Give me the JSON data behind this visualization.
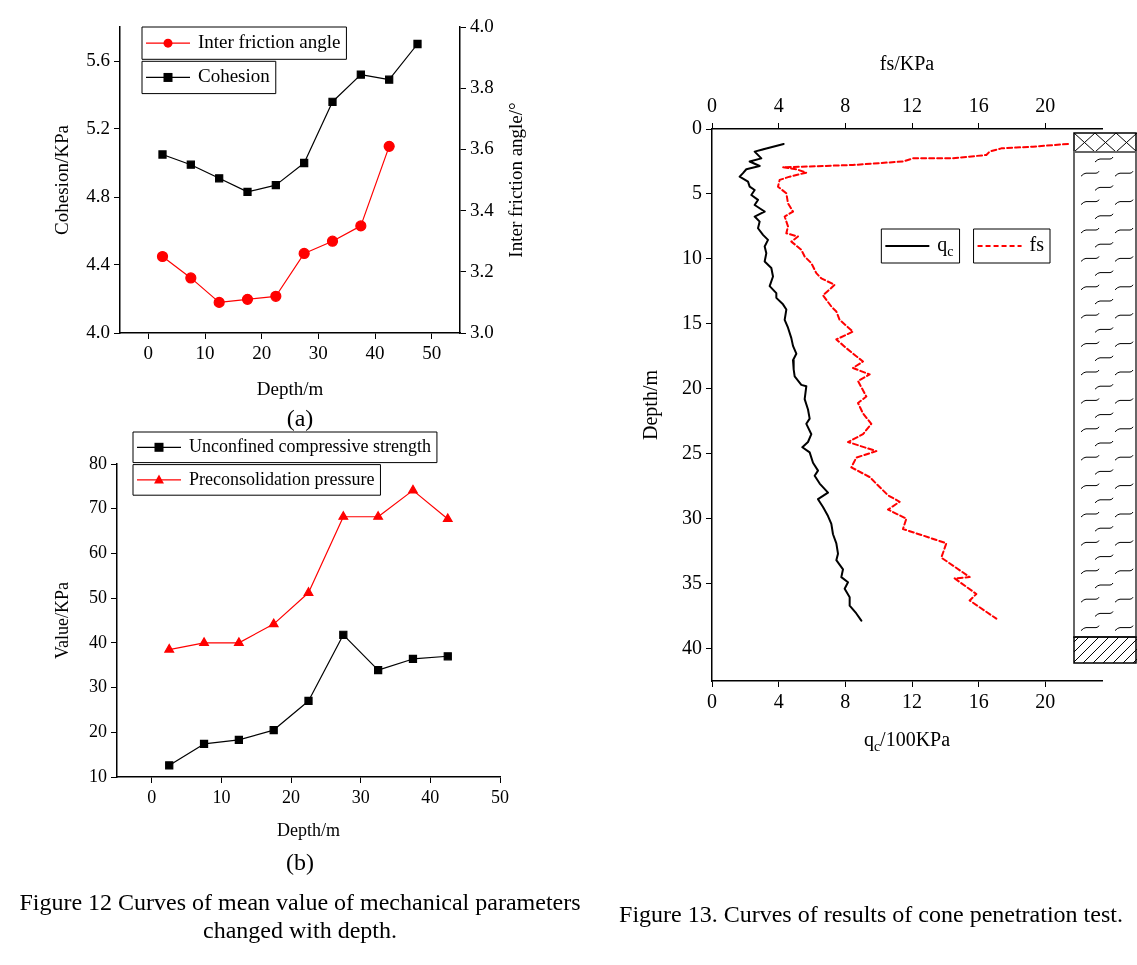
{
  "chart_data": [
    {
      "type": "line",
      "xlabel": "Depth/m",
      "ylabel": "Cohesion/KPa",
      "y2label": "Inter friction angle/°",
      "x": [
        2.5,
        7.5,
        12.5,
        17.5,
        22.5,
        27.5,
        32.5,
        37.5,
        42.5,
        47.5
      ],
      "xlim": [
        -5,
        55
      ],
      "xticks": [
        0,
        10,
        20,
        30,
        40,
        50
      ],
      "ylim": [
        4.0,
        5.8
      ],
      "yticks": [
        {
          "value": 4.0,
          "label": "4.0"
        },
        {
          "value": 4.4,
          "label": "4.4"
        },
        {
          "value": 4.8,
          "label": "4.8"
        },
        {
          "value": 5.2,
          "label": "5.2"
        },
        {
          "value": 5.6,
          "label": "5.6"
        }
      ],
      "y2lim": [
        3.0,
        4.0
      ],
      "y2ticks": [
        {
          "value": 3.0,
          "label": "3.0"
        },
        {
          "value": 3.2,
          "label": "3.2"
        },
        {
          "value": 3.4,
          "label": "3.4"
        },
        {
          "value": 3.6,
          "label": "3.6"
        },
        {
          "value": 3.8,
          "label": "3.8"
        },
        {
          "value": 4.0,
          "label": "4.0"
        }
      ],
      "legend": "top left",
      "series": [
        {
          "name": "Inter friction angle",
          "color": "#ff0000",
          "axis": "y2",
          "marker": "circle",
          "values": [
            3.25,
            3.18,
            3.1,
            3.11,
            3.12,
            3.26,
            3.3,
            3.35,
            3.61,
            null
          ]
        },
        {
          "name": "Cohesion",
          "color": "#000000",
          "marker": "square",
          "values": [
            5.05,
            4.99,
            4.91,
            4.83,
            4.87,
            5.0,
            5.36,
            5.52,
            5.49,
            5.7
          ]
        }
      ],
      "annotations": [
        "(a)"
      ]
    },
    {
      "type": "line",
      "xlabel": "Depth/m",
      "ylabel": "Value/KPa",
      "x": [
        2.5,
        7.5,
        12.5,
        17.5,
        22.5,
        27.5,
        32.5,
        37.5,
        42.5
      ],
      "xlim": [
        -5,
        50
      ],
      "xticks": [
        0,
        10,
        20,
        30,
        40,
        50
      ],
      "ylim": [
        10,
        80
      ],
      "yticks": [
        10,
        20,
        30,
        40,
        50,
        60,
        70,
        80
      ],
      "legend": "top left",
      "series": [
        {
          "name": "Unconfined compressive strength",
          "color": "#000000",
          "marker": "square",
          "values": [
            12.6,
            17.4,
            18.3,
            20.5,
            27,
            41.8,
            33.9,
            36.4,
            37
          ]
        },
        {
          "name": "Preconsolidation pressure",
          "color": "#ff0000",
          "marker": "triangle",
          "values": [
            38.5,
            40,
            40,
            44.2,
            51.2,
            68.2,
            68.2,
            74.1,
            67.7
          ]
        }
      ],
      "annotations": [
        "(b)",
        "Figure 12 Curves of mean value of mechanical parameters changed with depth."
      ]
    },
    {
      "type": "line",
      "xlabel": "q$_{c}$/100KPa",
      "x2label": "fs/KPa",
      "ylabel": "Depth/m",
      "xlim": [
        0,
        23.4
      ],
      "xticks": [
        0,
        4,
        8,
        12,
        16,
        20
      ],
      "x2lim": [
        0,
        23.4
      ],
      "x2ticks": [
        0,
        4,
        8,
        12,
        16,
        20
      ],
      "ylim": [
        42.5,
        0
      ],
      "yticks": [
        0,
        5,
        10,
        15,
        20,
        25,
        30,
        35,
        40
      ],
      "legend": "top right",
      "marker": "none",
      "series": [
        {
          "name": "q$_{c}$",
          "color": "#000000",
          "line_style": "solid",
          "x": [
            4.3,
            3.26,
            2.56,
            2.96,
            2.26,
            2.86,
            2.06,
            1.86,
            1.66,
            2.16,
            2.26,
            2.56,
            2.36,
            2.76,
            2.56,
            3.16,
            2.56,
            2.86,
            2.76,
            3.06,
            3.36,
            3.16,
            3.26,
            3.16,
            3.56,
            3.66,
            3.46,
            3.86,
            3.86,
            4.26,
            4.46,
            4.36,
            4.56,
            4.76,
            4.86,
            5.06,
            4.86,
            4.9,
            4.96,
            5.36,
            5.66,
            5.56,
            5.76,
            5.86,
            5.66,
            5.96,
            5.76,
            5.42,
            5.86,
            6.06,
            6.36,
            6.16,
            6.46,
            6.96,
            6.36,
            6.66,
            6.96,
            7.16,
            7.26,
            7.46,
            7.56,
            7.46,
            7.86,
            7.76,
            8.16,
            7.96,
            8.26,
            8.26,
            8.66,
            8.96
          ],
          "values": [
            1.15,
            1.5,
            1.74,
            2.26,
            2.5,
            2.85,
            3.1,
            3.4,
            3.67,
            4.05,
            4.44,
            4.7,
            5.08,
            5.46,
            5.85,
            6.36,
            6.74,
            7.13,
            7.64,
            8.15,
            8.54,
            9.05,
            9.56,
            10.2,
            10.7,
            11.36,
            12.1,
            12.64,
            13.0,
            13.5,
            13.9,
            14.7,
            15.3,
            16.1,
            16.7,
            17.3,
            17.8,
            18.5,
            19.05,
            19.7,
            19.8,
            20.8,
            21.6,
            22.3,
            22.7,
            23.5,
            24.1,
            24.5,
            24.9,
            25.7,
            26.3,
            26.7,
            27.3,
            28.0,
            28.5,
            29.1,
            29.8,
            30.4,
            31.2,
            31.9,
            32.7,
            33.2,
            33.9,
            34.5,
            34.9,
            35.4,
            36.05,
            36.7,
            37.3,
            37.85
          ]
        },
        {
          "name": "fs",
          "color": "#ff0000",
          "line_style": "dashed",
          "axis": "x2",
          "x": [
            21.36,
            19.26,
            17.36,
            16.66,
            16.46,
            14.36,
            12.06,
            11.46,
            8.46,
            4.26,
            5.06,
            5.66,
            4.66,
            4.06,
            3.96,
            4.46,
            4.56,
            4.86,
            4.36,
            4.56,
            4.46,
            5.16,
            4.76,
            5.36,
            5.56,
            5.96,
            6.26,
            6.56,
            7.36,
            6.66,
            7.16,
            7.46,
            7.66,
            8.46,
            7.46,
            8.06,
            8.66,
            9.06,
            8.46,
            9.46,
            8.76,
            9.26,
            8.76,
            9.06,
            9.56,
            9.06,
            8.16,
            9.86,
            8.66,
            8.36,
            9.46,
            10.56,
            11.26,
            10.56,
            11.66,
            11.46,
            12.66,
            14.06,
            13.76,
            15.46,
            14.56,
            15.86,
            15.46,
            17.06
          ],
          "values": [
            1.15,
            1.36,
            1.49,
            1.74,
            2.0,
            2.26,
            2.26,
            2.5,
            2.77,
            2.95,
            3.1,
            3.36,
            3.67,
            3.92,
            4.44,
            4.95,
            5.72,
            6.36,
            6.74,
            7.5,
            8.03,
            8.28,
            8.67,
            9.3,
            9.82,
            10.33,
            11.1,
            11.5,
            12.0,
            12.8,
            13.67,
            14.05,
            14.7,
            15.6,
            16.2,
            16.87,
            17.5,
            17.9,
            18.4,
            18.9,
            19.4,
            20.6,
            21.1,
            21.9,
            22.7,
            23.5,
            24.1,
            24.8,
            25.3,
            26.05,
            26.8,
            28.2,
            28.7,
            29.3,
            30.0,
            30.8,
            31.3,
            31.9,
            33.0,
            34.5,
            34.6,
            35.8,
            36.3,
            37.7
          ]
        }
      ],
      "annotations": [
        "Figure 13. Curves of results of cone penetration test."
      ]
    }
  ]
}
